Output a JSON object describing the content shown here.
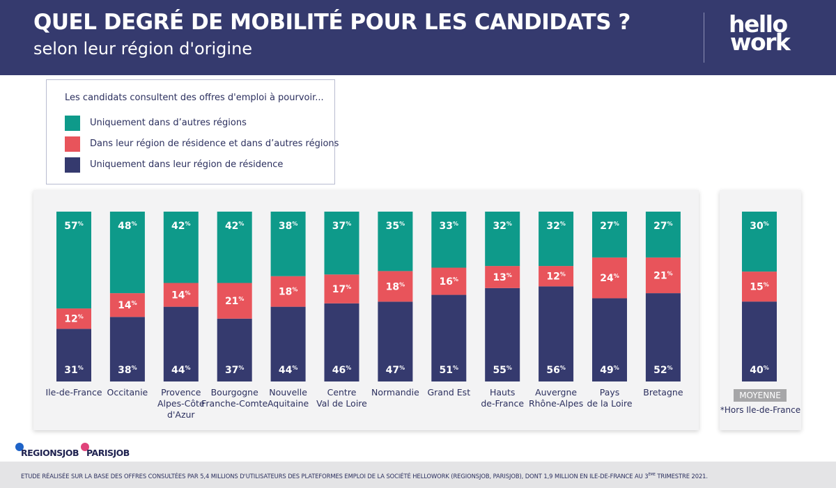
{
  "header": {
    "title": "QUEL DEGRÉ DE MOBILITÉ POUR LES CANDIDATS ?",
    "subtitle": "selon leur région d'origine",
    "logo_line1": "hello",
    "logo_line2": "work"
  },
  "legend": {
    "intro": "Les candidats consultent des offres d'emploi à pourvoir...",
    "items": [
      {
        "label": "Uniquement dans d’autres régions",
        "color": "#0e9a8a"
      },
      {
        "label": "Dans leur région de résidence et dans d’autres régions",
        "color": "#e8545b"
      },
      {
        "label": "Uniquement dans leur région de résidence",
        "color": "#353a6e"
      }
    ]
  },
  "chart_data": {
    "type": "bar",
    "stacked": true,
    "percent_suffix": "%",
    "categories": [
      [
        "Ile-de-France"
      ],
      [
        "Occitanie"
      ],
      [
        "Provence",
        "Alpes-Côte",
        "d'Azur"
      ],
      [
        "Bourgogne",
        "Franche-Comte"
      ],
      [
        "Nouvelle",
        "Aquitaine"
      ],
      [
        "Centre",
        "Val de Loire"
      ],
      [
        "Normandie"
      ],
      [
        "Grand Est"
      ],
      [
        "Hauts",
        "de-France"
      ],
      [
        "Auvergne",
        "Rhône-Alpes"
      ],
      [
        "Pays",
        "de la Loire"
      ],
      [
        "Bretagne"
      ]
    ],
    "series": [
      {
        "name": "Uniquement dans leur région de résidence",
        "color": "#353a6e",
        "values": [
          31,
          38,
          44,
          37,
          44,
          46,
          47,
          51,
          55,
          56,
          49,
          52
        ]
      },
      {
        "name": "Dans leur région de résidence et dans d’autres régions",
        "color": "#e8545b",
        "values": [
          12,
          14,
          14,
          21,
          18,
          17,
          18,
          16,
          13,
          12,
          24,
          21
        ]
      },
      {
        "name": "Uniquement dans d’autres régions",
        "color": "#0e9a8a",
        "values": [
          57,
          48,
          42,
          42,
          38,
          37,
          35,
          33,
          32,
          32,
          27,
          27
        ]
      }
    ],
    "average": {
      "label": "MOYENNE",
      "note": "*Hors Ile-de-France",
      "values": [
        40,
        15,
        30
      ]
    }
  },
  "brands": {
    "regionsjob": "REGIONSJOB",
    "parisjob": "PARISJOB",
    "regionsjob_color": "#1e63c8",
    "parisjob_color": "#e0437a"
  },
  "footer": {
    "note_main": "ETUDE RÉALISÉE SUR LA BASE DES OFFRES CONSULTÉES PAR 5,4 MILLIONS D'UTILISATEURS DES PLATEFORMES EMPLOI DE LA SOCIÉTÉ HELLOWORK (REGIONSJOB, PARISJOB), DONT 1,9 MILLION EN ILE-DE-FRANCE AU 3",
    "note_sup": "ÈME",
    "note_end": " TRIMESTRE 2021."
  }
}
